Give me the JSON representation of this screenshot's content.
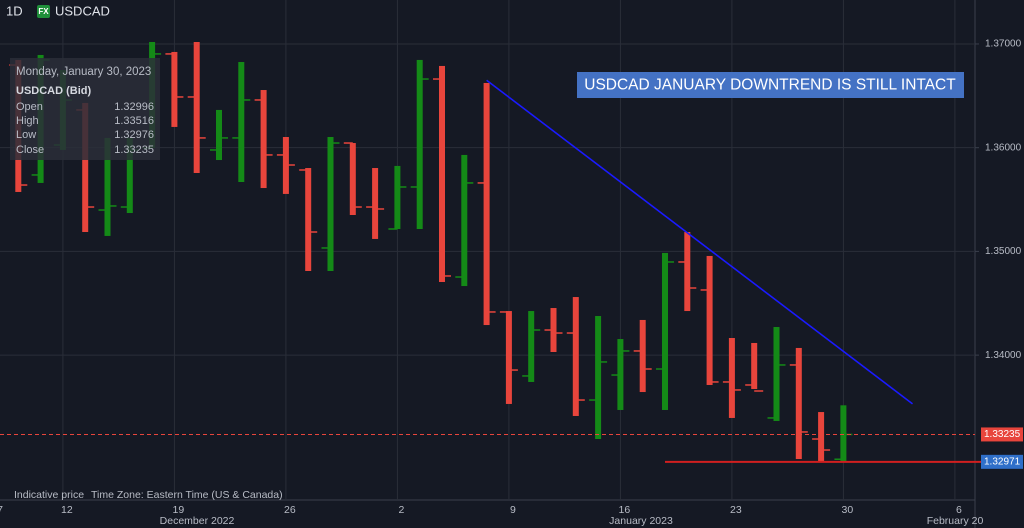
{
  "chart_data": {
    "type": "ohlc",
    "interval": "1D",
    "badge": "FX",
    "symbol": "USDCAD",
    "categories": [
      "7",
      null,
      null,
      "12",
      null,
      null,
      null,
      null,
      "19",
      null,
      null,
      null,
      null,
      "26",
      null,
      null,
      null,
      null,
      "2",
      null,
      null,
      null,
      null,
      "9",
      null,
      null,
      null,
      null,
      "16",
      null,
      null,
      null,
      null,
      "23",
      null,
      null,
      null,
      null,
      "30",
      null,
      null,
      null,
      null,
      "6"
    ],
    "open": [
      null,
      1.36797,
      1.35737,
      1.36026,
      1.36364,
      1.35399,
      1.35428,
      1.35997,
      1.36904,
      1.36489,
      1.35978,
      1.36094,
      1.3646,
      1.3593,
      1.35785,
      1.35033,
      1.36045,
      1.35428,
      1.35216,
      1.35621,
      1.36662,
      1.34753,
      1.3566,
      1.34416,
      1.33799,
      1.34242,
      1.34213,
      1.33567,
      1.33808,
      1.3404,
      1.33866,
      1.34898,
      1.34628,
      1.33741,
      1.33712,
      1.33394,
      1.33905,
      1.33191,
      1.32996,
      null,
      null,
      null,
      null,
      null
    ],
    "high": [
      null,
      1.36846,
      1.36894,
      1.36749,
      1.36431,
      1.36094,
      1.36094,
      1.37019,
      1.36923,
      1.37019,
      1.36364,
      1.36826,
      1.36556,
      1.36103,
      1.35804,
      1.36103,
      1.36045,
      1.35804,
      1.35824,
      1.36846,
      1.36788,
      1.3593,
      1.36624,
      1.34425,
      1.34425,
      1.34454,
      1.3456,
      1.34377,
      1.34155,
      1.34339,
      1.34985,
      1.35187,
      1.34956,
      1.34165,
      1.34117,
      1.34271,
      1.34069,
      1.33451,
      1.33516,
      null,
      null,
      null,
      null,
      null
    ],
    "low": [
      null,
      1.35573,
      1.3566,
      1.35978,
      1.35187,
      1.35149,
      1.3537,
      1.35997,
      1.362,
      1.35756,
      1.35881,
      1.35669,
      1.35611,
      1.35554,
      1.34811,
      1.34811,
      1.35351,
      1.3512,
      1.35216,
      1.35216,
      1.34705,
      1.34666,
      1.3429,
      1.33529,
      1.33741,
      1.3403,
      1.33413,
      1.33191,
      1.33471,
      1.33644,
      1.33471,
      1.34425,
      1.33712,
      1.33394,
      1.33673,
      1.33365,
      1.32998,
      1.32979,
      1.32976,
      null,
      null,
      null,
      null,
      null
    ],
    "close": [
      null,
      1.3564,
      1.36846,
      1.3646,
      1.35428,
      1.35438,
      1.35978,
      1.36904,
      1.36489,
      1.36094,
      1.36094,
      1.3646,
      1.3593,
      1.35833,
      1.35187,
      1.36045,
      1.35428,
      1.35409,
      1.35621,
      1.36662,
      1.34763,
      1.3566,
      1.34416,
      1.33856,
      1.34242,
      1.34213,
      1.33567,
      1.33934,
      1.3404,
      1.33866,
      1.34898,
      1.34647,
      1.33741,
      1.33664,
      1.33654,
      1.33905,
      1.33259,
      1.33085,
      1.33235,
      null,
      null,
      null,
      null,
      null
    ],
    "up_color": "#148a17",
    "down_color": "#e8453c",
    "ylim": [
      1.32603,
      1.37424
    ],
    "yticks": [
      {
        "value": 1.37,
        "label": "1.37000"
      },
      {
        "value": 1.36,
        "label": "1.36000"
      },
      {
        "value": 1.35,
        "label": "1.35000"
      },
      {
        "value": 1.34,
        "label": "1.34000"
      }
    ],
    "grid": true,
    "month_labels": [
      "December 2022",
      "January 2023",
      "February 20"
    ],
    "tooltip": {
      "title": "Monday, January 30, 2023",
      "subtitle": "USDCAD (Bid)",
      "labels": [
        "Open",
        "High",
        "Low",
        "Close"
      ]
    },
    "annotation": "USDCAD JANUARY DOWNTREND IS STILL INTACT",
    "trendline": {
      "start": [
        22,
        1.3665
      ],
      "end": [
        41.1,
        1.3353
      ],
      "color": "#1a1aff"
    },
    "support": {
      "value": 1.32971,
      "start": 30,
      "color": "#d11f1f",
      "label": "1.32971",
      "label_color": "#2f6fc9"
    },
    "last_price": {
      "value": 1.33235,
      "label": "1.33235",
      "color": "#e8453c"
    },
    "footer": [
      "Indicative price",
      "Time Zone: Eastern Time (US & Canada)"
    ]
  }
}
